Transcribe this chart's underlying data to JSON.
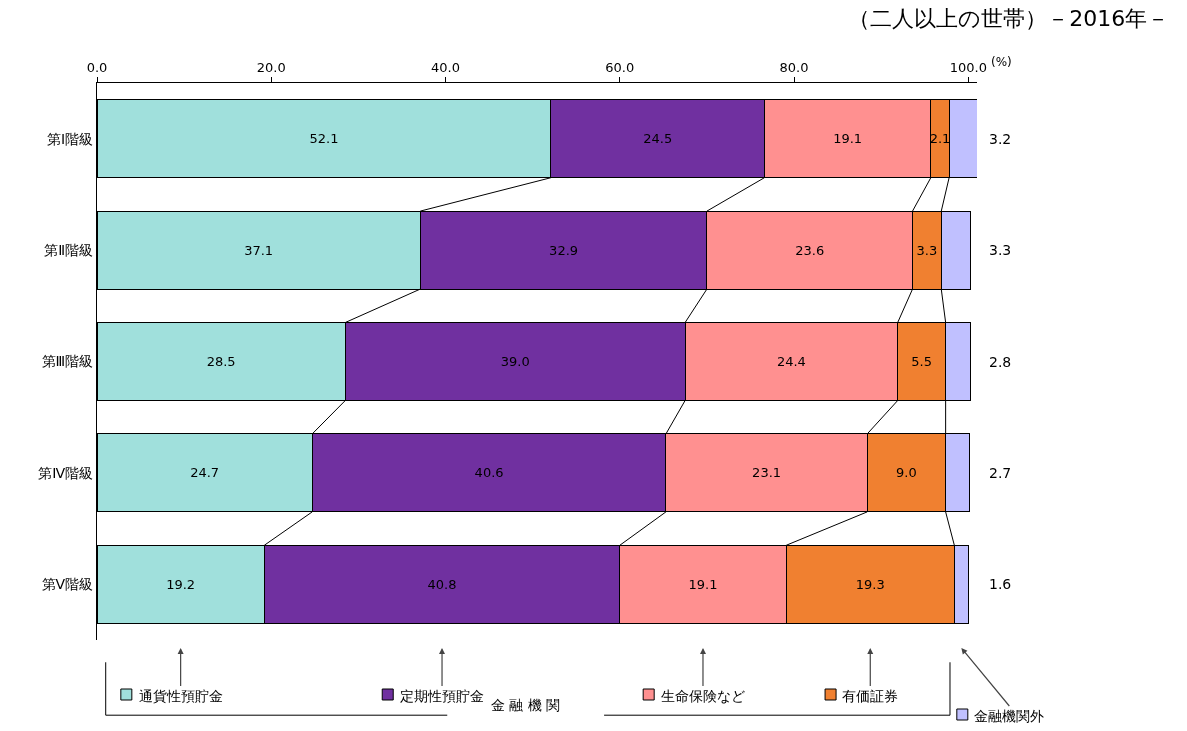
{
  "chart_data": {
    "type": "bar",
    "orientation": "horizontal",
    "stacked": true,
    "title": "（二人以上の世帯）－2016年－",
    "xlabel": "(%)",
    "categories": [
      "第Ⅰ階級",
      "第Ⅱ階級",
      "第Ⅲ階級",
      "第Ⅳ階級",
      "第Ⅴ階級"
    ],
    "series": [
      {
        "name": "通貨性預貯金",
        "color": "#a0e0dc",
        "values": [
          52.1,
          37.1,
          28.5,
          24.7,
          19.2
        ]
      },
      {
        "name": "定期性預貯金",
        "color": "#7030a0",
        "values": [
          24.5,
          32.9,
          39.0,
          40.6,
          40.8
        ]
      },
      {
        "name": "生命保険など",
        "color": "#ff9090",
        "values": [
          19.1,
          23.6,
          24.4,
          23.1,
          19.1
        ]
      },
      {
        "name": "有価証券",
        "color": "#f08030",
        "values": [
          2.1,
          3.3,
          5.5,
          9.0,
          19.3
        ]
      },
      {
        "name": "金融機関外",
        "color": "#c0c0ff",
        "values": [
          3.2,
          3.3,
          2.8,
          2.7,
          1.6
        ]
      }
    ],
    "value_labels": [
      [
        "52.1",
        "37.1",
        "28.5",
        "24.7",
        "19.2"
      ],
      [
        "24.5",
        "32.9",
        "39.0",
        "40.6",
        "40.8"
      ],
      [
        "19.1",
        "23.6",
        "24.4",
        "23.1",
        "19.1"
      ],
      [
        "2.1",
        "3.3",
        "5.5",
        "9.0",
        "19.3"
      ],
      [
        "3.2",
        "3.3",
        "2.8",
        "2.7",
        "1.6"
      ]
    ],
    "xlim": [
      0,
      101
    ],
    "xticks": [
      {
        "value": 0,
        "label": "0.0"
      },
      {
        "value": 20,
        "label": "20.0"
      },
      {
        "value": 40,
        "label": "40.0"
      },
      {
        "value": 60,
        "label": "60.0"
      },
      {
        "value": 80,
        "label": "80.0"
      },
      {
        "value": 100,
        "label": "100.0"
      }
    ],
    "annotations": [
      "金 融 機 関"
    ],
    "grid": false,
    "legend": "bottom"
  }
}
